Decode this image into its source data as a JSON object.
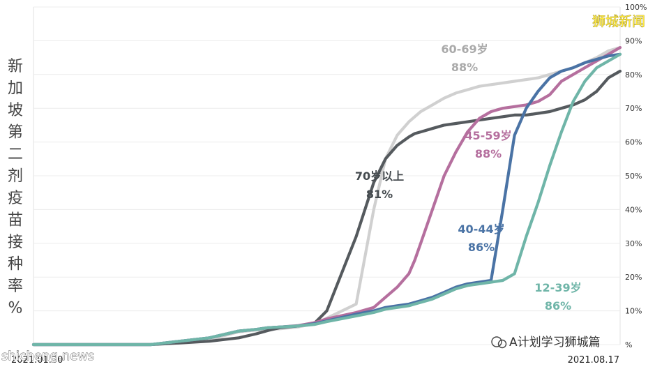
{
  "chart_data": {
    "type": "line",
    "ylabel": "新加坡第二剂疫苗接种率%",
    "x_start_label": "2021.01.30",
    "x_end_label": "2021.08.17",
    "y_ticks": [
      "10%",
      "20%",
      "30%",
      "40%",
      "50%",
      "60%",
      "70%",
      "80%",
      "90%",
      "100%"
    ],
    "ylim": [
      0,
      100
    ],
    "grid": true,
    "x": [
      0.0,
      0.1,
      0.2,
      0.3,
      0.35,
      0.38,
      0.4,
      0.42,
      0.45,
      0.48,
      0.5,
      0.55,
      0.58,
      0.6,
      0.62,
      0.64,
      0.65,
      0.66,
      0.68,
      0.7,
      0.72,
      0.74,
      0.76,
      0.78,
      0.8,
      0.82,
      0.84,
      0.86,
      0.88,
      0.9,
      0.92,
      0.94,
      0.96,
      0.98,
      1.0
    ],
    "series": [
      {
        "name": "60-69岁",
        "label": "60-69岁",
        "value_label": "88%",
        "color": "#d0d0d0",
        "values": [
          0,
          0,
          0,
          1.5,
          3.8,
          4.3,
          4.5,
          4.7,
          5.2,
          6.2,
          7.8,
          12,
          40,
          55,
          62,
          66,
          67.5,
          69,
          71,
          73,
          74.5,
          75.5,
          76.5,
          77,
          77.5,
          78,
          78.5,
          79,
          80,
          81,
          82,
          83.5,
          85,
          87,
          88
        ]
      },
      {
        "name": "70岁以上",
        "label": "70岁以上",
        "value_label": "81%",
        "color": "#555a5e",
        "values": [
          0,
          0,
          0,
          1,
          2,
          3.2,
          4.2,
          5,
          5.5,
          6.5,
          10,
          32,
          48,
          55,
          59,
          61.5,
          62.5,
          63,
          64,
          65,
          65.5,
          66,
          66.5,
          67,
          67.5,
          68,
          68,
          68.5,
          69,
          70,
          71,
          72.5,
          75,
          79,
          81
        ]
      },
      {
        "name": "45-59岁",
        "label": "45-59岁",
        "value_label": "88%",
        "color": "#b56f9e",
        "values": [
          0,
          0,
          0,
          2,
          4,
          4.5,
          5,
          5.2,
          5.6,
          6.5,
          7.6,
          9.5,
          11,
          14,
          17,
          21,
          25,
          30,
          40,
          50,
          57,
          63,
          67,
          69,
          70,
          70.5,
          71,
          72,
          74,
          78,
          80,
          82,
          84,
          86,
          88
        ]
      },
      {
        "name": "40-44岁",
        "label": "40-44岁",
        "value_label": "86%",
        "color": "#4a73a5",
        "values": [
          0,
          0,
          0,
          2,
          4,
          4.5,
          5,
          5.2,
          5.5,
          6.2,
          7,
          9,
          10,
          11,
          11.5,
          12,
          12.5,
          13,
          14,
          15.5,
          17,
          18,
          18.5,
          19,
          40,
          62,
          70,
          75,
          79,
          81,
          82,
          83.5,
          84.5,
          85.5,
          86
        ]
      },
      {
        "name": "12-39岁",
        "label": "12-39岁",
        "value_label": "86%",
        "color": "#6fb5a8",
        "values": [
          0,
          0,
          0,
          2,
          4,
          4.5,
          5,
          5.2,
          5.5,
          6,
          6.8,
          8.5,
          9.5,
          10.5,
          11,
          11.5,
          12,
          12.5,
          13.5,
          15,
          16.5,
          17.5,
          18,
          18.5,
          19,
          21,
          32,
          42,
          53,
          63,
          72,
          78,
          82,
          84,
          86
        ]
      }
    ]
  },
  "brand": "狮城新闻",
  "watermark_left": "shicheng.news",
  "watermark_right": "A计划学习狮城篇"
}
